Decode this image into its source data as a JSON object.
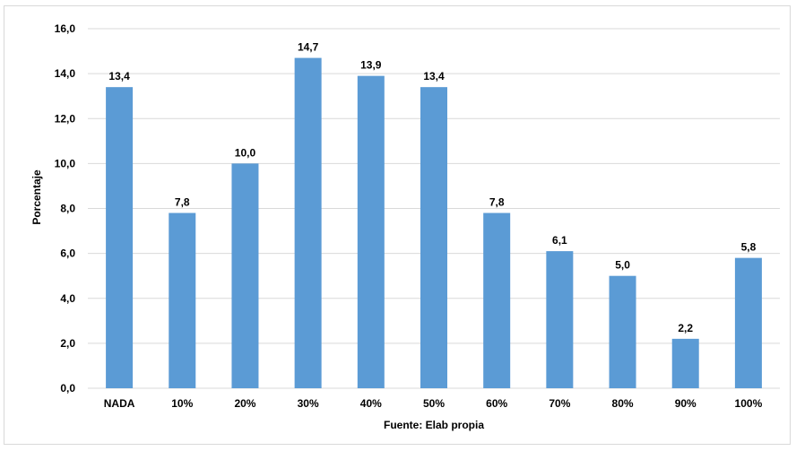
{
  "chart_data": {
    "type": "bar",
    "categories": [
      "NADA",
      "10%",
      "20%",
      "30%",
      "40%",
      "50%",
      "60%",
      "70%",
      "80%",
      "90%",
      "100%"
    ],
    "values": [
      13.4,
      7.8,
      10.0,
      14.7,
      13.9,
      13.4,
      7.8,
      6.1,
      5.0,
      2.2,
      5.8
    ],
    "value_labels": [
      "13,4",
      "7,8",
      "10,0",
      "14,7",
      "13,9",
      "13,4",
      "7,8",
      "6,1",
      "5,0",
      "2,2",
      "5,8"
    ],
    "yticks": [
      "0,0",
      "2,0",
      "4,0",
      "6,0",
      "8,0",
      "10,0",
      "12,0",
      "14,0",
      "16,0"
    ],
    "ylim": [
      0,
      16
    ],
    "ylabel": "Porcentaje",
    "xlabel": "Fuente: Elab propia",
    "grid": true,
    "legend": "none",
    "colors": {
      "bar": "#5b9bd5",
      "grid": "#d9d9d9",
      "text": "#000000"
    }
  }
}
